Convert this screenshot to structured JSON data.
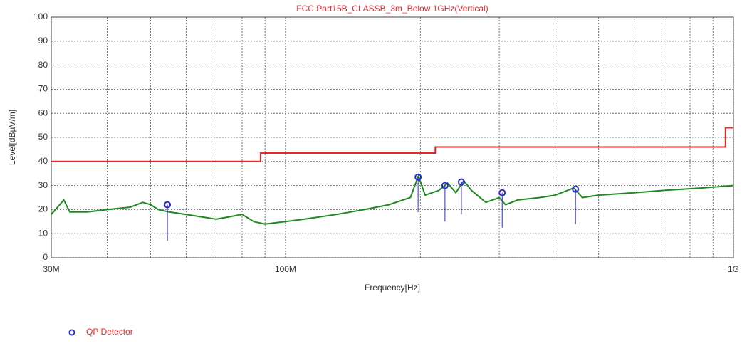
{
  "chart_data": {
    "type": "line",
    "title": "FCC Part15B_CLASSB_3m_Below 1GHz(Vertical)",
    "xlabel": "Frequency[Hz]",
    "ylabel": "Level[dBµV/m]",
    "xscale": "log",
    "xlim": [
      30000000,
      1000000000
    ],
    "xticks": [
      {
        "value": 30000000,
        "label": "30M"
      },
      {
        "value": 100000000,
        "label": "100M"
      },
      {
        "value": 1000000000,
        "label": "1G"
      }
    ],
    "xgrid": [
      40000000,
      50000000,
      60000000,
      70000000,
      80000000,
      90000000,
      200000000,
      300000000,
      400000000,
      500000000,
      600000000,
      700000000,
      800000000,
      900000000
    ],
    "ylim": [
      0,
      100
    ],
    "yticks": [
      0,
      10,
      20,
      30,
      40,
      50,
      60,
      70,
      80,
      90,
      100
    ],
    "grid": true,
    "series": [
      {
        "color": "#e8262a",
        "x": [
          30000000,
          88000000,
          88000000,
          216000000,
          216000000,
          960000000,
          960000000,
          1000000000
        ],
        "values": [
          40,
          40,
          43.5,
          43.5,
          46,
          46,
          54,
          54
        ]
      },
      {
        "color": "#1f8a1f",
        "x": [
          30000000,
          32000000,
          33000000,
          36000000,
          40000000,
          45000000,
          48000000,
          50000000,
          52000000,
          55000000,
          60000000,
          70000000,
          75000000,
          80000000,
          85000000,
          90000000,
          100000000,
          110000000,
          130000000,
          150000000,
          170000000,
          190000000,
          198000000,
          205000000,
          220000000,
          230000000,
          240000000,
          250000000,
          260000000,
          280000000,
          300000000,
          310000000,
          330000000,
          370000000,
          400000000,
          440000000,
          460000000,
          500000000,
          600000000,
          700000000,
          850000000,
          1000000000
        ],
        "values": [
          18,
          24,
          19,
          19,
          20,
          21,
          23,
          22,
          20,
          19,
          18,
          16,
          17,
          18,
          15,
          14,
          15,
          16,
          18,
          20,
          22,
          25,
          34,
          26,
          28,
          31,
          27,
          32,
          28,
          23,
          25,
          22,
          24,
          25,
          26,
          29,
          25,
          26,
          27,
          28,
          29,
          30
        ]
      }
    ],
    "markers": {
      "name": "QP Detector",
      "color": "#2b2bd6",
      "x": [
        54500000,
        197700000,
        227000000,
        247000000,
        304600000,
        444000000
      ],
      "values": [
        22,
        33.5,
        30,
        31.5,
        27,
        28.5
      ],
      "low": [
        7,
        19,
        15,
        18,
        12.5,
        14
      ]
    }
  }
}
